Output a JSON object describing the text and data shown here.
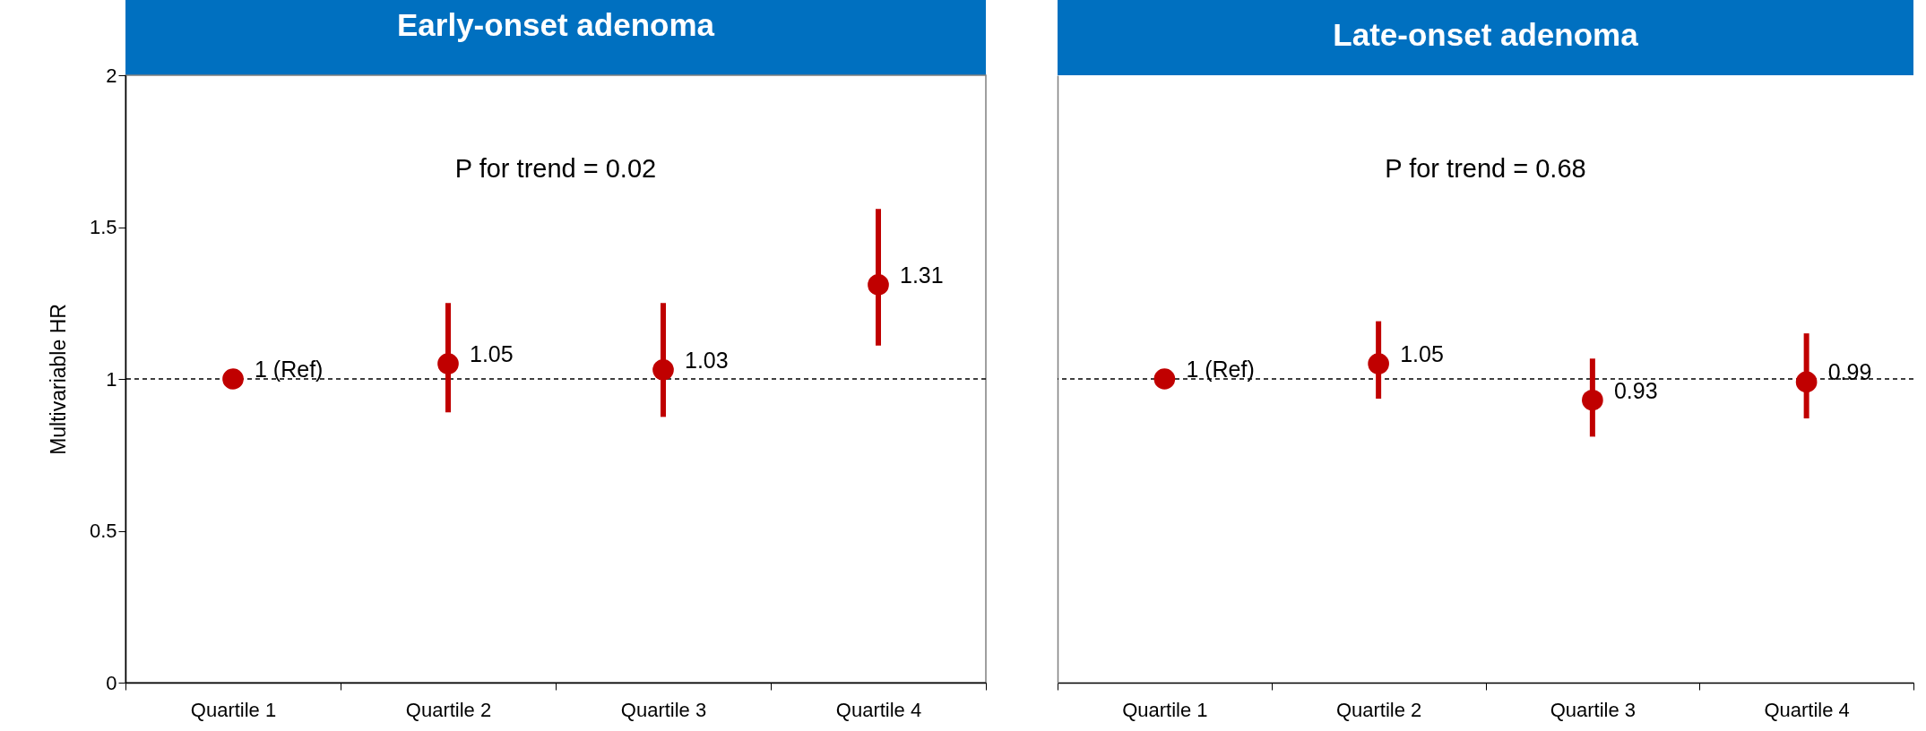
{
  "chart_data": [
    {
      "type": "scatter",
      "title": "Early-onset adenoma",
      "ylabel": "Multivariable HR",
      "categories": [
        "Quartile 1",
        "Quartile 2",
        "Quartile 3",
        "Quartile 4"
      ],
      "values": [
        1,
        1.05,
        1.03,
        1.31
      ],
      "errors": [
        null,
        [
          0.89,
          1.25
        ],
        [
          0.875,
          1.25
        ],
        [
          1.11,
          1.56
        ]
      ],
      "value_labels": [
        "1 (Ref)",
        "1.05",
        "1.03",
        "1.31"
      ],
      "color": "#c00000",
      "marker": "circle",
      "ylim": [
        0,
        2
      ],
      "yticks": [
        0,
        0.5,
        1,
        1.5,
        2
      ],
      "ref_lines": [
        {
          "axis": "y",
          "value": 1,
          "line_style": "dashed",
          "color": "#000000"
        }
      ],
      "annotations": [
        "P for trend = 0.02"
      ]
    },
    {
      "type": "scatter",
      "title": "Late-onset adenoma",
      "categories": [
        "Quartile 1",
        "Quartile 2",
        "Quartile 3",
        "Quartile 4"
      ],
      "values": [
        1,
        1.05,
        0.93,
        0.99
      ],
      "errors": [
        null,
        [
          0.935,
          1.19
        ],
        [
          0.81,
          1.067
        ],
        [
          0.87,
          1.15
        ]
      ],
      "value_labels": [
        "1 (Ref)",
        "1.05",
        "0.93",
        "0.99"
      ],
      "color": "#c00000",
      "marker": "circle",
      "ylim": [
        0,
        2
      ],
      "yticks": [
        0,
        0.5,
        1,
        1.5,
        2
      ],
      "tick_labels": "x",
      "ref_lines": [
        {
          "axis": "y",
          "value": 1,
          "line_style": "dashed",
          "color": "#000000"
        }
      ],
      "annotations": [
        "P for trend = 0.68"
      ]
    }
  ]
}
